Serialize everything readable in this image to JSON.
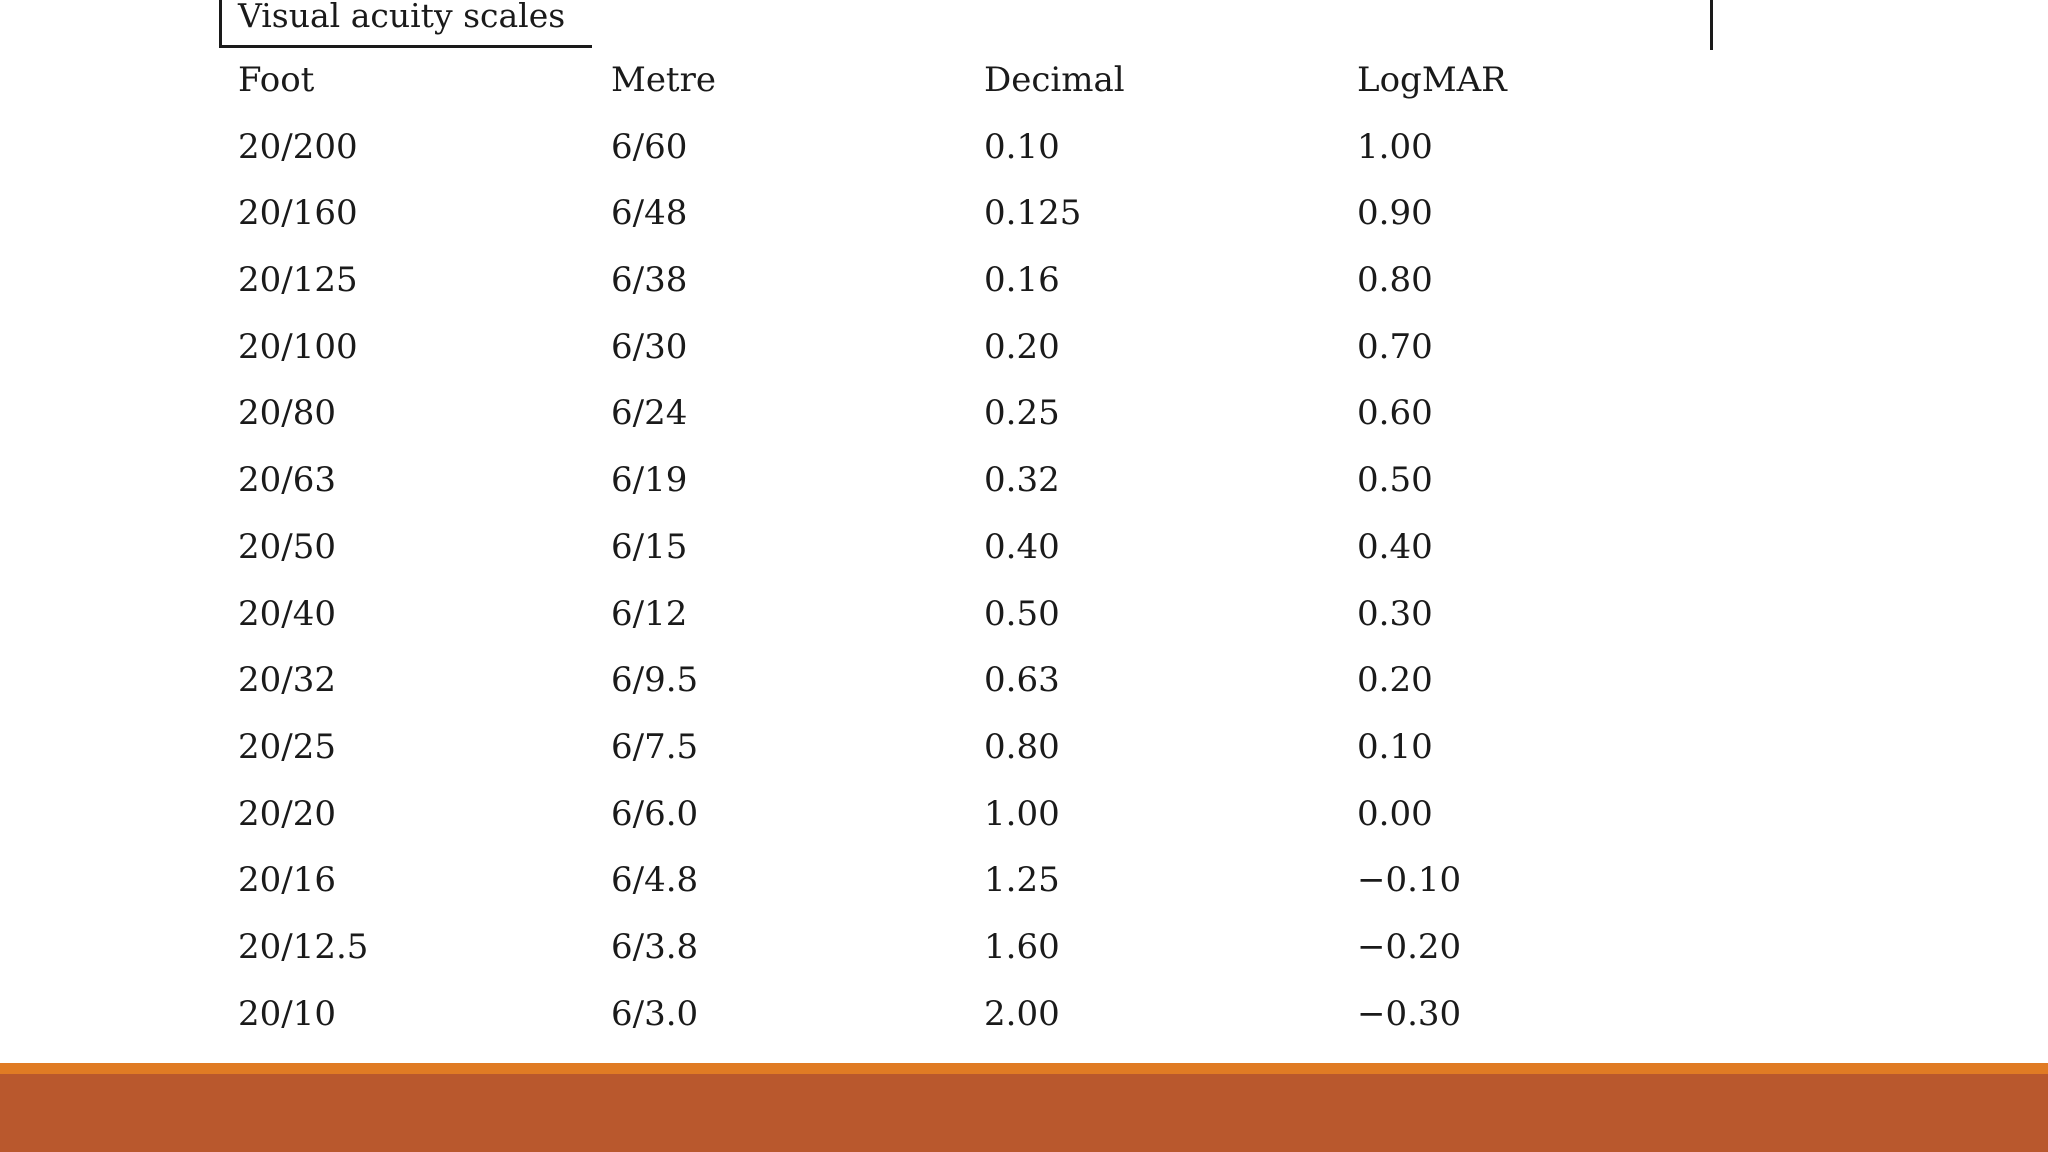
{
  "table": {
    "title": "Visual acuity scales",
    "headers": [
      "Foot",
      "Metre",
      "Decimal",
      "LogMAR"
    ],
    "rows": [
      [
        "20/200",
        "6/60",
        "0.10",
        "1.00"
      ],
      [
        "20/160",
        "6/48",
        "0.125",
        "0.90"
      ],
      [
        "20/125",
        "6/38",
        "0.16",
        "0.80"
      ],
      [
        "20/100",
        "6/30",
        "0.20",
        "0.70"
      ],
      [
        "20/80",
        "6/24",
        "0.25",
        "0.60"
      ],
      [
        "20/63",
        "6/19",
        "0.32",
        "0.50"
      ],
      [
        "20/50",
        "6/15",
        "0.40",
        "0.40"
      ],
      [
        "20/40",
        "6/12",
        "0.50",
        "0.30"
      ],
      [
        "20/32",
        "6/9.5",
        "0.63",
        "0.20"
      ],
      [
        "20/25",
        "6/7.5",
        "0.80",
        "0.10"
      ],
      [
        "20/20",
        "6/6.0",
        "1.00",
        "0.00"
      ],
      [
        "20/16",
        "6/4.8",
        "1.25",
        "−0.10"
      ],
      [
        "20/12.5",
        "6/3.8",
        "1.60",
        "−0.20"
      ],
      [
        "20/10",
        "6/3.0",
        "2.00",
        "−0.30"
      ]
    ]
  },
  "theme": {
    "footer_accent_color": "#e07b24",
    "footer_bar_color": "#b9582d"
  }
}
